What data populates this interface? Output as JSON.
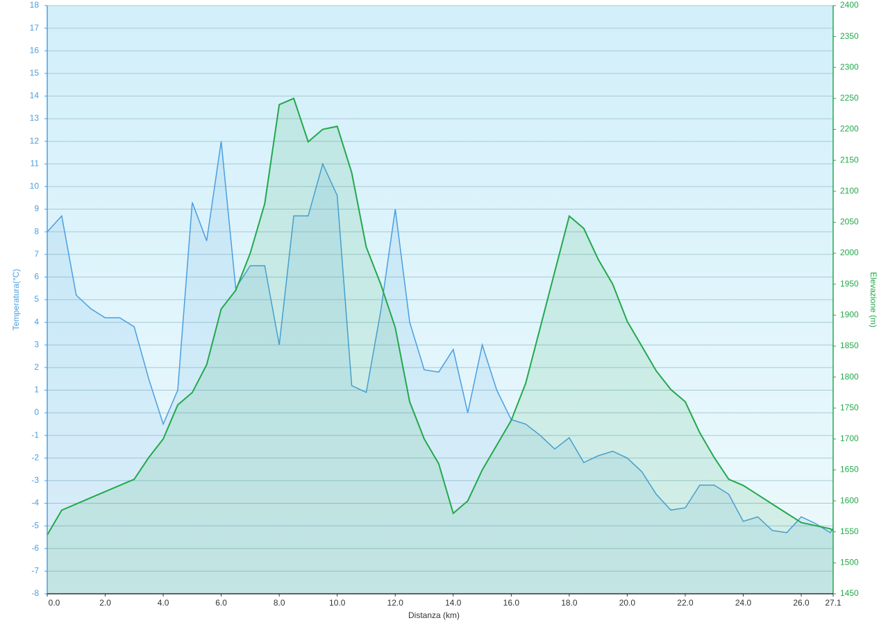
{
  "chart_data": {
    "type": "line",
    "x_label": "Distanza  (km)",
    "y_label": "Temperatura(°C)",
    "y2_label": "Elevazione (m)",
    "x": [
      0,
      0.5,
      1,
      1.5,
      2,
      2.5,
      3,
      3.5,
      4,
      4.5,
      5,
      5.5,
      6,
      6.5,
      7,
      7.5,
      8,
      8.5,
      9,
      9.5,
      10,
      10.5,
      11,
      11.5,
      12,
      12.5,
      13,
      13.5,
      14,
      14.5,
      15,
      15.5,
      16,
      16.5,
      17,
      17.5,
      18,
      18.5,
      19,
      19.5,
      20,
      20.5,
      21,
      21.5,
      22,
      22.5,
      23,
      23.5,
      24,
      24.5,
      25,
      25.5,
      26,
      26.5,
      27,
      27.1
    ],
    "series": [
      {
        "name": "Temperatura",
        "color": "#4a9ee0",
        "axis": "y",
        "values": [
          8,
          8.7,
          5.2,
          4.6,
          4.2,
          4.2,
          3.8,
          1.5,
          -0.5,
          1,
          9.3,
          7.6,
          12,
          5.5,
          6.5,
          6.5,
          3,
          8.7,
          8.7,
          11,
          9.6,
          1.2,
          0.9,
          4.5,
          9,
          4,
          1.9,
          1.8,
          2.8,
          0,
          3,
          1,
          -0.3,
          -0.5,
          -1,
          -1.6,
          -1.1,
          -2.2,
          -1.9,
          -1.7,
          -2,
          -2.6,
          -3.6,
          -4.3,
          -4.2,
          -3.2,
          -3.2,
          -3.6,
          -4.8,
          -4.6,
          -5.2,
          -5.3,
          -4.6,
          -4.9,
          -5.3,
          -5.1
        ]
      },
      {
        "name": "Elevazione",
        "color": "#22a84a",
        "axis": "y2",
        "values": [
          1545,
          1585,
          1595,
          1605,
          1615,
          1625,
          1635,
          1670,
          1700,
          1755,
          1775,
          1820,
          1910,
          1940,
          2000,
          2080,
          2240,
          2250,
          2180,
          2200,
          2205,
          2130,
          2010,
          1950,
          1880,
          1760,
          1700,
          1660,
          1580,
          1600,
          1650,
          1690,
          1730,
          1790,
          1880,
          1970,
          2060,
          2040,
          1990,
          1950,
          1890,
          1850,
          1810,
          1780,
          1760,
          1710,
          1670,
          1635,
          1625,
          1610,
          1595,
          1580,
          1565,
          1560,
          1555,
          1552
        ]
      }
    ],
    "xlim": [
      0,
      27.1
    ],
    "xticks": [
      {
        "value": 0,
        "label": "0.0"
      },
      {
        "value": 2,
        "label": "2.0"
      },
      {
        "value": 4,
        "label": "4.0"
      },
      {
        "value": 6,
        "label": "6.0"
      },
      {
        "value": 8,
        "label": "8.0"
      },
      {
        "value": 10,
        "label": "10.0"
      },
      {
        "value": 12,
        "label": "12.0"
      },
      {
        "value": 14,
        "label": "14.0"
      },
      {
        "value": 16,
        "label": "16.0"
      },
      {
        "value": 18,
        "label": "18.0"
      },
      {
        "value": 20,
        "label": "20.0"
      },
      {
        "value": 22,
        "label": "22.0"
      },
      {
        "value": 24,
        "label": "24.0"
      },
      {
        "value": 26,
        "label": "26.0"
      },
      {
        "value": 27.1,
        "label": "27.1"
      }
    ],
    "ylim": [
      -8,
      18
    ],
    "yticks": [
      -8,
      -7,
      -6,
      -5,
      -4,
      -3,
      -2,
      -1,
      0,
      1,
      2,
      3,
      4,
      5,
      6,
      7,
      8,
      9,
      10,
      11,
      12,
      13,
      14,
      15,
      16,
      17,
      18
    ],
    "y2lim": [
      1450,
      2400
    ],
    "y2ticks": [
      1450,
      1500,
      1550,
      1600,
      1650,
      1700,
      1750,
      1800,
      1850,
      1900,
      1950,
      2000,
      2050,
      2100,
      2150,
      2200,
      2250,
      2300,
      2350,
      2400
    ],
    "grid": true
  }
}
